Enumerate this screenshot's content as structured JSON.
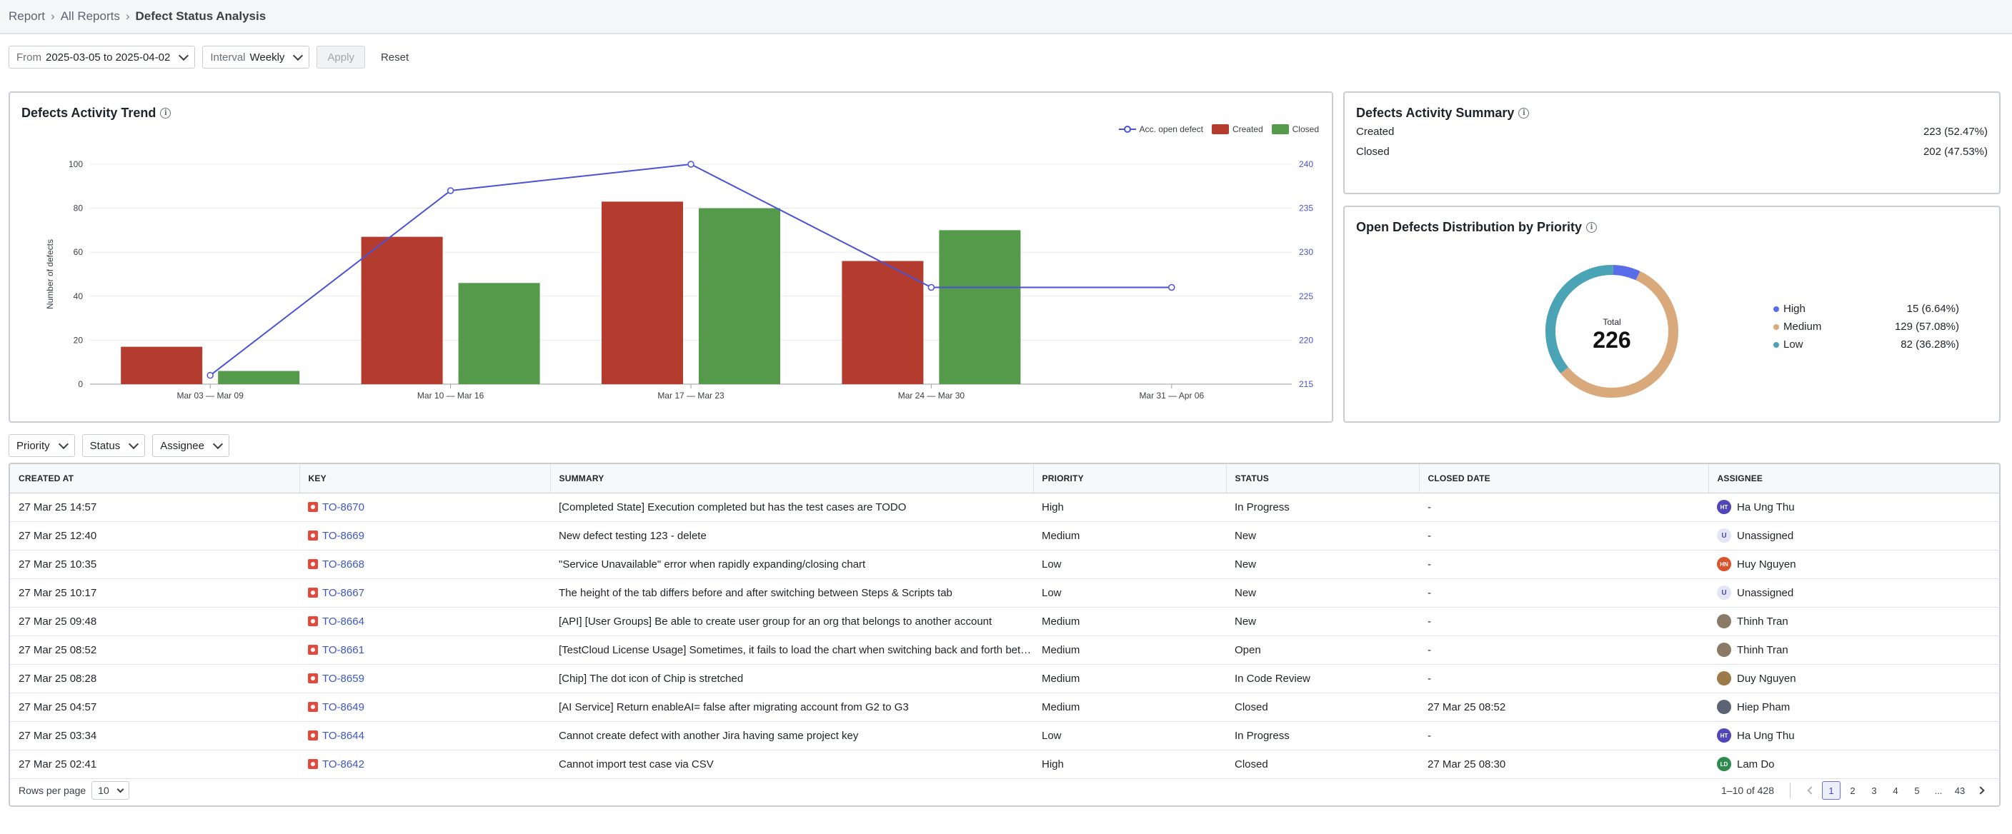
{
  "breadcrumb": {
    "items": [
      "Report",
      "All Reports"
    ],
    "current": "Defect Status Analysis",
    "separator": "›"
  },
  "filters": {
    "from_label": "From",
    "date_range": "2025-03-05 to 2025-04-02",
    "interval_label": "Interval",
    "interval_value": "Weekly",
    "apply_label": "Apply",
    "reset_label": "Reset"
  },
  "trend_card": {
    "title": "Defects Activity Trend",
    "legend": [
      {
        "name": "Acc. open defect",
        "color": "#4a52d6",
        "kind": "line"
      },
      {
        "name": "Created",
        "color": "#b43c2e",
        "kind": "box"
      },
      {
        "name": "Closed",
        "color": "#55994a",
        "kind": "box"
      }
    ]
  },
  "chart_data": [
    {
      "type": "bar",
      "title": "Defects Activity Trend",
      "xlabel": "",
      "ylabel": "Number of defects",
      "y2label": "",
      "categories": [
        "Mar 03 — Mar 09",
        "Mar 10 — Mar 16",
        "Mar 17 — Mar 23",
        "Mar 24 — Mar 30",
        "Mar 31 — Apr 06"
      ],
      "series": [
        {
          "name": "Created",
          "type": "bar",
          "color": "#b43c2e",
          "values": [
            17,
            67,
            83,
            56,
            null
          ]
        },
        {
          "name": "Closed",
          "type": "bar",
          "color": "#55994a",
          "values": [
            6,
            46,
            80,
            70,
            null
          ]
        },
        {
          "name": "Acc. open defect",
          "type": "line",
          "axis": "right",
          "color": "#4a52d6",
          "values": [
            216,
            237,
            240,
            226,
            226
          ]
        }
      ],
      "ylim": [
        0,
        100
      ],
      "yticks": [
        0,
        20,
        40,
        60,
        80,
        100
      ],
      "y2lim": [
        215,
        240
      ],
      "y2ticks": [
        215,
        220,
        225,
        230,
        235,
        240
      ],
      "grid": true,
      "legend": "top-right"
    },
    {
      "type": "pie",
      "title": "Open Defects Distribution by Priority",
      "center_label": "Total",
      "center_value": "226",
      "categories": [
        "High",
        "Medium",
        "Low"
      ],
      "values": [
        15,
        129,
        82
      ],
      "percentages": [
        "6.64%",
        "57.08%",
        "36.28%"
      ],
      "colors": [
        "#5a6de8",
        "#d9a97c",
        "#4ba3b6"
      ],
      "legend": "right"
    }
  ],
  "summary_card": {
    "title": "Defects Activity Summary",
    "rows": [
      {
        "label": "Created",
        "value": "223 (52.47%)"
      },
      {
        "label": "Closed",
        "value": "202 (47.53%)"
      }
    ]
  },
  "priority_card": {
    "title": "Open Defects Distribution by Priority",
    "total_label": "Total",
    "total_value": "226",
    "legend": [
      {
        "name": "High",
        "value": "15 (6.64%)",
        "color": "#5a6de8"
      },
      {
        "name": "Medium",
        "value": "129 (57.08%)",
        "color": "#d9a97c"
      },
      {
        "name": "Low",
        "value": "82 (36.28%)",
        "color": "#4ba3b6"
      }
    ]
  },
  "table_filters": [
    "Priority",
    "Status",
    "Assignee"
  ],
  "table": {
    "columns": [
      "CREATED AT",
      "KEY",
      "SUMMARY",
      "PRIORITY",
      "STATUS",
      "CLOSED DATE",
      "ASSIGNEE"
    ],
    "rows": [
      {
        "created": "27 Mar 25 14:57",
        "key": "TO-8670",
        "summary": "[Completed State] Execution completed but has the test cases are TODO",
        "priority": "High",
        "status": "In Progress",
        "closed": "-",
        "assignee": "Ha Ung Thu",
        "avatar_text": "HT",
        "avatar_color": "#4f46b8"
      },
      {
        "created": "27 Mar 25 12:40",
        "key": "TO-8669",
        "summary": "New defect testing 123 - delete",
        "priority": "Medium",
        "status": "New",
        "closed": "-",
        "assignee": "Unassigned",
        "avatar_text": "U",
        "avatar_color": "#e3e4f4"
      },
      {
        "created": "27 Mar 25 10:35",
        "key": "TO-8668",
        "summary": "\"Service Unavailable\" error when rapidly expanding/closing chart",
        "priority": "Low",
        "status": "New",
        "closed": "-",
        "assignee": "Huy Nguyen",
        "avatar_text": "HN",
        "avatar_color": "#d9532c"
      },
      {
        "created": "27 Mar 25 10:17",
        "key": "TO-8667",
        "summary": "The height of the tab differs before and after switching between Steps & Scripts tab",
        "priority": "Low",
        "status": "New",
        "closed": "-",
        "assignee": "Unassigned",
        "avatar_text": "U",
        "avatar_color": "#e3e4f4"
      },
      {
        "created": "27 Mar 25 09:48",
        "key": "TO-8664",
        "summary": "[API] [User Groups] Be able to create user group for an org that belongs to another account",
        "priority": "Medium",
        "status": "New",
        "closed": "-",
        "assignee": "Thinh Tran",
        "avatar_text": "",
        "avatar_color": "#8a7a66"
      },
      {
        "created": "27 Mar 25 08:52",
        "key": "TO-8661",
        "summary": "[TestCloud License Usage] Sometimes, it fails to load the chart when switching back and forth between tabs",
        "priority": "Medium",
        "status": "Open",
        "closed": "-",
        "assignee": "Thinh Tran",
        "avatar_text": "",
        "avatar_color": "#8a7a66"
      },
      {
        "created": "27 Mar 25 08:28",
        "key": "TO-8659",
        "summary": "[Chip] The dot icon of Chip is stretched",
        "priority": "Medium",
        "status": "In Code Review",
        "closed": "-",
        "assignee": "Duy Nguyen",
        "avatar_text": "",
        "avatar_color": "#9c7a4a"
      },
      {
        "created": "27 Mar 25 04:57",
        "key": "TO-8649",
        "summary": "[AI Service] Return enableAI= false after migrating account from G2 to G3",
        "priority": "Medium",
        "status": "Closed",
        "closed": "27 Mar 25 08:52",
        "assignee": "Hiep Pham",
        "avatar_text": "",
        "avatar_color": "#5a6472"
      },
      {
        "created": "27 Mar 25 03:34",
        "key": "TO-8644",
        "summary": "Cannot create defect with another Jira having same project key",
        "priority": "Low",
        "status": "In Progress",
        "closed": "-",
        "assignee": "Ha Ung Thu",
        "avatar_text": "HT",
        "avatar_color": "#4f46b8"
      },
      {
        "created": "27 Mar 25 02:41",
        "key": "TO-8642",
        "summary": "Cannot import test case via CSV",
        "priority": "High",
        "status": "Closed",
        "closed": "27 Mar 25 08:30",
        "assignee": "Lam Do",
        "avatar_text": "LD",
        "avatar_color": "#2f8a4e"
      }
    ]
  },
  "pagination": {
    "rows_per_page_label": "Rows per page",
    "rows_per_page": "10",
    "range": "1–10 of 428",
    "pages": [
      "1",
      "2",
      "3",
      "4",
      "5",
      "...",
      "43"
    ],
    "current_page": "1"
  }
}
